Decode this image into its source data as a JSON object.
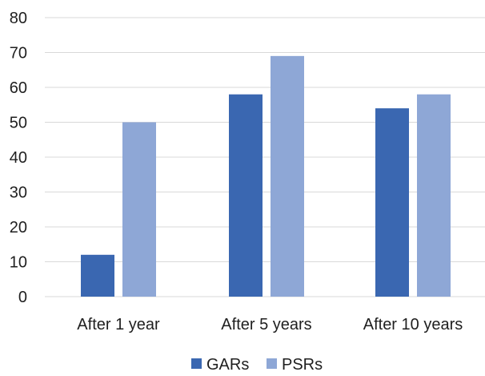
{
  "chart_data": {
    "type": "bar",
    "categories": [
      "After 1 year",
      "After 5 years",
      "After 10 years"
    ],
    "series": [
      {
        "name": "GARs",
        "values": [
          12,
          58,
          54
        ],
        "color": "#3a67b1"
      },
      {
        "name": "PSRs",
        "values": [
          50,
          69,
          58
        ],
        "color": "#8ea7d6"
      }
    ],
    "yticks": [
      "0",
      "10",
      "20",
      "30",
      "40",
      "50",
      "60",
      "70",
      "80"
    ],
    "ylim": [
      0,
      80
    ],
    "grid": true,
    "legend": "bottom",
    "gridColor": "#d9d9d9",
    "title": "",
    "xlabel": "",
    "ylabel": ""
  }
}
